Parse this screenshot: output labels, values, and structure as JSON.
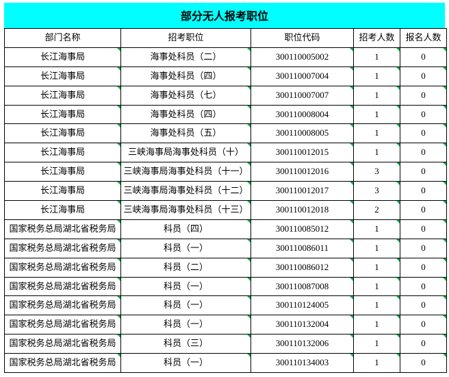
{
  "title": "部分无人报考职位",
  "columns": {
    "dept": "部门名称",
    "position": "招考职位",
    "code": "职位代码",
    "recruit": "招考人数",
    "applicants": "报名人数"
  },
  "rows": [
    {
      "dept": "长江海事局",
      "position": "海事处科员（二）",
      "code": "300110005002",
      "recruit": "1",
      "applicants": "0"
    },
    {
      "dept": "长江海事局",
      "position": "海事处科员（四）",
      "code": "300110007004",
      "recruit": "1",
      "applicants": "0"
    },
    {
      "dept": "长江海事局",
      "position": "海事处科员（七）",
      "code": "300110007007",
      "recruit": "1",
      "applicants": "0"
    },
    {
      "dept": "长江海事局",
      "position": "海事处科员（四）",
      "code": "300110008004",
      "recruit": "1",
      "applicants": "0"
    },
    {
      "dept": "长江海事局",
      "position": "海事处科员（五）",
      "code": "300110008005",
      "recruit": "1",
      "applicants": "0"
    },
    {
      "dept": "长江海事局",
      "position": "三峡海事局海事处科员（十）",
      "code": "300110012015",
      "recruit": "1",
      "applicants": "0"
    },
    {
      "dept": "长江海事局",
      "position": "三峡海事局海事处科员（十一）",
      "code": "300110012016",
      "recruit": "3",
      "applicants": "0"
    },
    {
      "dept": "长江海事局",
      "position": "三峡海事局海事处科员（十二）",
      "code": "300110012017",
      "recruit": "3",
      "applicants": "0"
    },
    {
      "dept": "长江海事局",
      "position": "三峡海事局海事处科员（十三）",
      "code": "300110012018",
      "recruit": "2",
      "applicants": "0"
    },
    {
      "dept": "国家税务总局湖北省税务局",
      "position": "科员（四）",
      "code": "300110085012",
      "recruit": "1",
      "applicants": "0"
    },
    {
      "dept": "国家税务总局湖北省税务局",
      "position": "科员（一）",
      "code": "300110086011",
      "recruit": "1",
      "applicants": "0"
    },
    {
      "dept": "国家税务总局湖北省税务局",
      "position": "科员（二）",
      "code": "300110086012",
      "recruit": "1",
      "applicants": "0"
    },
    {
      "dept": "国家税务总局湖北省税务局",
      "position": "科员（一）",
      "code": "300110087008",
      "recruit": "1",
      "applicants": "0"
    },
    {
      "dept": "国家税务总局湖北省税务局",
      "position": "科员（一）",
      "code": "300110124005",
      "recruit": "1",
      "applicants": "0"
    },
    {
      "dept": "国家税务总局湖北省税务局",
      "position": "科员（一）",
      "code": "300110132004",
      "recruit": "1",
      "applicants": "0"
    },
    {
      "dept": "国家税务总局湖北省税务局",
      "position": "科员（三）",
      "code": "300110132006",
      "recruit": "1",
      "applicants": "0"
    },
    {
      "dept": "国家税务总局湖北省税务局",
      "position": "科员（一）",
      "code": "300110134003",
      "recruit": "1",
      "applicants": "0"
    }
  ]
}
